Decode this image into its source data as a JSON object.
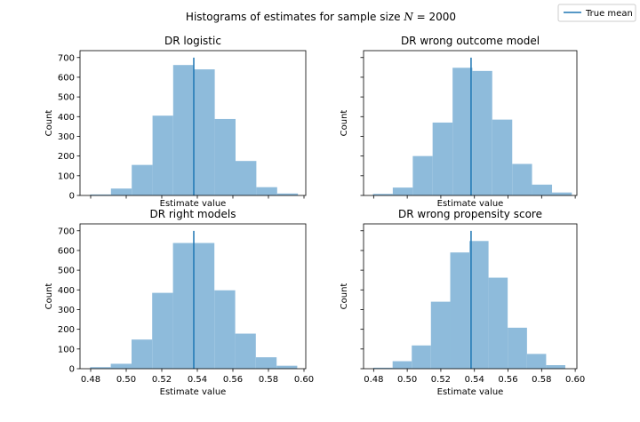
{
  "figure": {
    "title": "Histograms of estimates for sample size ",
    "title_n": "N",
    "title_eq": " = 2000"
  },
  "legend": {
    "label": "True mean",
    "placement": "top-right"
  },
  "colors": {
    "bar_fill": "#8ebbdb",
    "bar_alpha": 1.0,
    "true_mean_line": "#1f77b4",
    "axis": "#000000",
    "background": "#ffffff"
  },
  "chart_data": [
    {
      "type": "bar",
      "title": "DR logistic",
      "xlabel": "Estimate value",
      "ylabel": "Count",
      "show_xticklabels": false,
      "show_yticklabels": true,
      "xlim": [
        0.474,
        0.601
      ],
      "ylim": [
        0,
        735
      ],
      "xticks": [
        0.48,
        0.5,
        0.52,
        0.54,
        0.56,
        0.58,
        0.6
      ],
      "xtick_labels": [
        "0.48",
        "0.50",
        "0.52",
        "0.54",
        "0.56",
        "0.58",
        "0.60"
      ],
      "yticks": [
        0,
        100,
        200,
        300,
        400,
        500,
        600,
        700
      ],
      "ytick_labels": [
        "0",
        "100",
        "200",
        "300",
        "400",
        "500",
        "600",
        "700"
      ],
      "bin_edges": [
        0.4797,
        0.4914,
        0.5031,
        0.5148,
        0.5264,
        0.5381,
        0.5498,
        0.5615,
        0.5732,
        0.5849,
        0.5966
      ],
      "values": [
        5,
        35,
        155,
        405,
        662,
        640,
        388,
        175,
        42,
        10
      ],
      "true_mean": 0.538
    },
    {
      "type": "bar",
      "title": "DR wrong outcome model",
      "xlabel": "Estimate value",
      "ylabel": "Count",
      "show_xticklabels": false,
      "show_yticklabels": false,
      "xlim": [
        0.474,
        0.601
      ],
      "ylim": [
        0,
        735
      ],
      "xticks": [
        0.48,
        0.5,
        0.52,
        0.54,
        0.56,
        0.58,
        0.6
      ],
      "xtick_labels": [
        "0.48",
        "0.50",
        "0.52",
        "0.54",
        "0.56",
        "0.58",
        "0.60"
      ],
      "yticks": [
        0,
        100,
        200,
        300,
        400,
        500,
        600,
        700
      ],
      "ytick_labels": [
        "0",
        "100",
        "200",
        "300",
        "400",
        "500",
        "600",
        "700"
      ],
      "bin_edges": [
        0.4796,
        0.4914,
        0.5033,
        0.5151,
        0.527,
        0.5388,
        0.5506,
        0.5625,
        0.5743,
        0.5862,
        0.598
      ],
      "values": [
        8,
        40,
        200,
        370,
        648,
        632,
        385,
        160,
        55,
        15
      ],
      "true_mean": 0.538
    },
    {
      "type": "bar",
      "title": "DR right models",
      "xlabel": "Estimate value",
      "ylabel": "Count",
      "show_xticklabels": true,
      "show_yticklabels": true,
      "xlim": [
        0.474,
        0.601
      ],
      "ylim": [
        0,
        735
      ],
      "xticks": [
        0.48,
        0.5,
        0.52,
        0.54,
        0.56,
        0.58,
        0.6
      ],
      "xtick_labels": [
        "0.48",
        "0.50",
        "0.52",
        "0.54",
        "0.56",
        "0.58",
        "0.60"
      ],
      "yticks": [
        0,
        100,
        200,
        300,
        400,
        500,
        600,
        700
      ],
      "ytick_labels": [
        "0",
        "100",
        "200",
        "300",
        "400",
        "500",
        "600",
        "700"
      ],
      "bin_edges": [
        0.4797,
        0.4913,
        0.503,
        0.5146,
        0.5263,
        0.538,
        0.5496,
        0.5613,
        0.5729,
        0.5846,
        0.5962
      ],
      "values": [
        8,
        25,
        148,
        385,
        638,
        638,
        398,
        178,
        58,
        15
      ],
      "true_mean": 0.538
    },
    {
      "type": "bar",
      "title": "DR wrong propensity score",
      "xlabel": "Estimate value",
      "ylabel": "Count",
      "show_xticklabels": true,
      "show_yticklabels": false,
      "xlim": [
        0.474,
        0.601
      ],
      "ylim": [
        0,
        735
      ],
      "xticks": [
        0.48,
        0.5,
        0.52,
        0.54,
        0.56,
        0.58,
        0.6
      ],
      "xtick_labels": [
        "0.48",
        "0.50",
        "0.52",
        "0.54",
        "0.56",
        "0.58",
        "0.60"
      ],
      "yticks": [
        0,
        100,
        200,
        300,
        400,
        500,
        600,
        700
      ],
      "ytick_labels": [
        "0",
        "100",
        "200",
        "300",
        "400",
        "500",
        "600",
        "700"
      ],
      "bin_edges": [
        0.4798,
        0.4913,
        0.5027,
        0.5141,
        0.5256,
        0.537,
        0.5484,
        0.5598,
        0.5713,
        0.5827,
        0.5941
      ],
      "values": [
        5,
        38,
        118,
        340,
        590,
        648,
        462,
        208,
        75,
        18
      ],
      "true_mean": 0.538
    }
  ]
}
